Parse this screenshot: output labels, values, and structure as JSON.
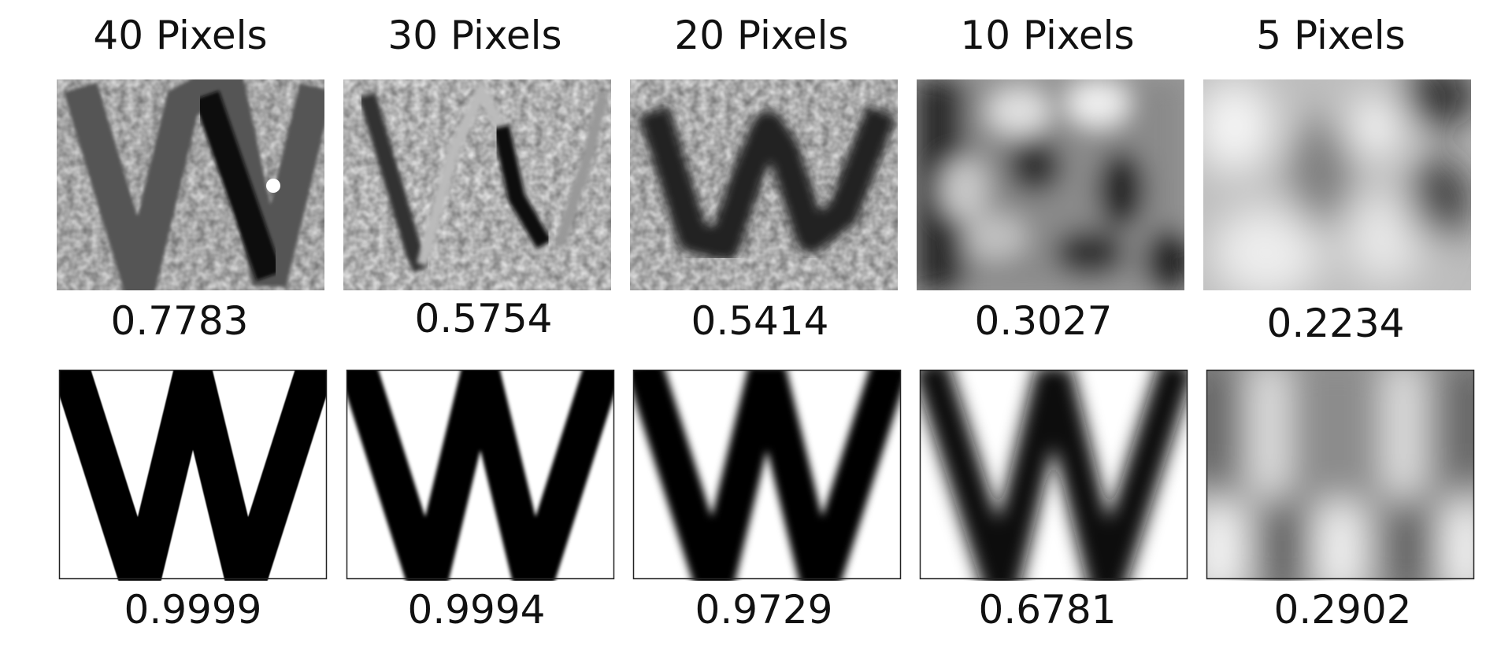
{
  "columns": [
    {
      "label": "40 Pixels",
      "scores": {
        "real": "0.7783",
        "synthetic": "0.9999"
      }
    },
    {
      "label": "30 Pixels",
      "scores": {
        "real": "0.5754",
        "synthetic": "0.9994"
      }
    },
    {
      "label": "20 Pixels",
      "scores": {
        "real": "0.5414",
        "synthetic": "0.9729"
      }
    },
    {
      "label": "10 Pixels",
      "scores": {
        "real": "0.3027",
        "synthetic": "0.6781"
      }
    },
    {
      "label": "5 Pixels",
      "scores": {
        "real": "0.2234",
        "synthetic": "0.2902"
      }
    }
  ],
  "rows": [
    {
      "kind": "real",
      "image": "letter-w-photo"
    },
    {
      "kind": "synthetic",
      "image": "letter-w-rendered"
    }
  ],
  "colors": {
    "ink": "#111111",
    "background": "#ffffff",
    "frame": "#222222"
  }
}
